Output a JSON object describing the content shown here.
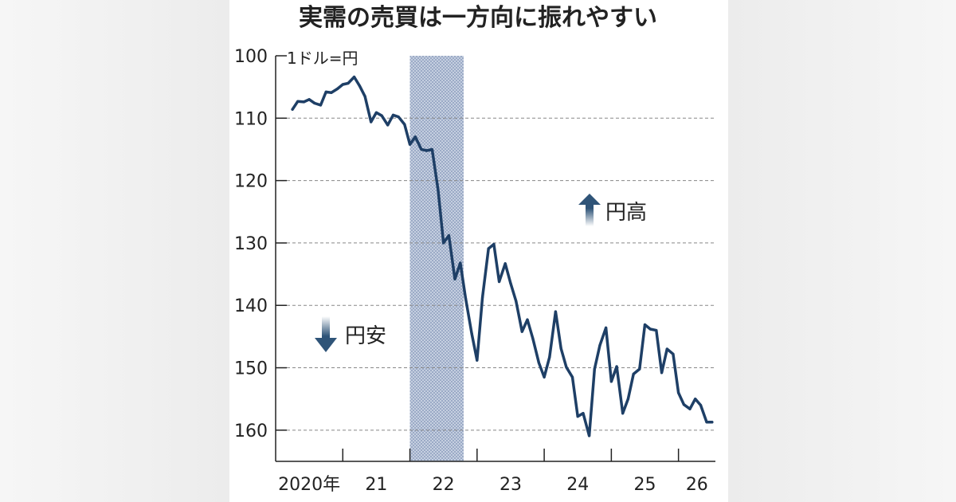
{
  "chart_data": {
    "type": "line",
    "title": "実需の売買は一方向に振れやすい",
    "unit_label": "1ドル=円",
    "y_axis": {
      "ticks": [
        100,
        110,
        120,
        130,
        140,
        150,
        160
      ],
      "min": 100,
      "max": 165,
      "inverted": true
    },
    "x_axis": {
      "labels": [
        "2020年",
        "21",
        "22",
        "23",
        "24",
        "25",
        "26"
      ],
      "range": [
        2020.0,
        2026.55
      ]
    },
    "grid": {
      "horizontal": true,
      "style": "dashed"
    },
    "highlight": {
      "x_start": 2022.0,
      "x_end": 2022.8
    },
    "annotations": [
      {
        "text": "円高",
        "direction": "up"
      },
      {
        "text": "円安",
        "direction": "down"
      }
    ],
    "series": [
      {
        "color": "#1e3f66",
        "points": [
          [
            2020.25,
            108.6
          ],
          [
            2020.33,
            107.3
          ],
          [
            2020.42,
            107.4
          ],
          [
            2020.5,
            107.0
          ],
          [
            2020.58,
            107.6
          ],
          [
            2020.67,
            107.9
          ],
          [
            2020.75,
            105.8
          ],
          [
            2020.83,
            105.9
          ],
          [
            2020.92,
            105.3
          ],
          [
            2021.0,
            104.6
          ],
          [
            2021.08,
            104.4
          ],
          [
            2021.17,
            103.4
          ],
          [
            2021.25,
            104.8
          ],
          [
            2021.33,
            106.5
          ],
          [
            2021.42,
            110.6
          ],
          [
            2021.5,
            109.1
          ],
          [
            2021.58,
            109.6
          ],
          [
            2021.67,
            111.1
          ],
          [
            2021.75,
            109.5
          ],
          [
            2021.83,
            109.8
          ],
          [
            2021.92,
            111.0
          ],
          [
            2022.0,
            114.2
          ],
          [
            2022.08,
            113.0
          ],
          [
            2022.17,
            115.0
          ],
          [
            2022.25,
            115.2
          ],
          [
            2022.33,
            115.0
          ],
          [
            2022.42,
            121.5
          ],
          [
            2022.5,
            130.0
          ],
          [
            2022.58,
            128.8
          ],
          [
            2022.67,
            135.8
          ],
          [
            2022.75,
            133.2
          ],
          [
            2022.83,
            138.9
          ],
          [
            2022.92,
            144.5
          ],
          [
            2023.0,
            148.8
          ],
          [
            2023.08,
            138.7
          ],
          [
            2023.17,
            130.9
          ],
          [
            2023.25,
            130.2
          ],
          [
            2023.33,
            136.2
          ],
          [
            2023.42,
            133.3
          ],
          [
            2023.5,
            136.5
          ],
          [
            2023.58,
            139.3
          ],
          [
            2023.67,
            144.2
          ],
          [
            2023.75,
            142.3
          ],
          [
            2023.83,
            145.3
          ],
          [
            2023.92,
            149.2
          ],
          [
            2024.0,
            151.5
          ],
          [
            2024.08,
            148.3
          ],
          [
            2024.17,
            141.0
          ],
          [
            2024.25,
            146.9
          ],
          [
            2024.33,
            149.9
          ],
          [
            2024.42,
            151.5
          ],
          [
            2024.5,
            157.8
          ],
          [
            2024.58,
            157.3
          ],
          [
            2024.67,
            160.9
          ],
          [
            2024.75,
            150.2
          ],
          [
            2024.83,
            146.4
          ],
          [
            2024.92,
            143.6
          ],
          [
            2025.0,
            152.2
          ],
          [
            2025.08,
            149.8
          ],
          [
            2025.17,
            157.3
          ],
          [
            2025.25,
            155.0
          ],
          [
            2025.33,
            151.0
          ],
          [
            2025.42,
            150.2
          ],
          [
            2025.5,
            143.1
          ],
          [
            2025.58,
            143.8
          ],
          [
            2025.67,
            144.0
          ],
          [
            2025.75,
            150.8
          ],
          [
            2025.83,
            147.0
          ],
          [
            2025.92,
            147.8
          ],
          [
            2026.0,
            154.0
          ],
          [
            2026.08,
            155.9
          ],
          [
            2026.17,
            156.6
          ],
          [
            2026.25,
            155.0
          ],
          [
            2026.33,
            156.0
          ],
          [
            2026.42,
            158.7
          ],
          [
            2026.5,
            158.7
          ]
        ]
      }
    ]
  }
}
